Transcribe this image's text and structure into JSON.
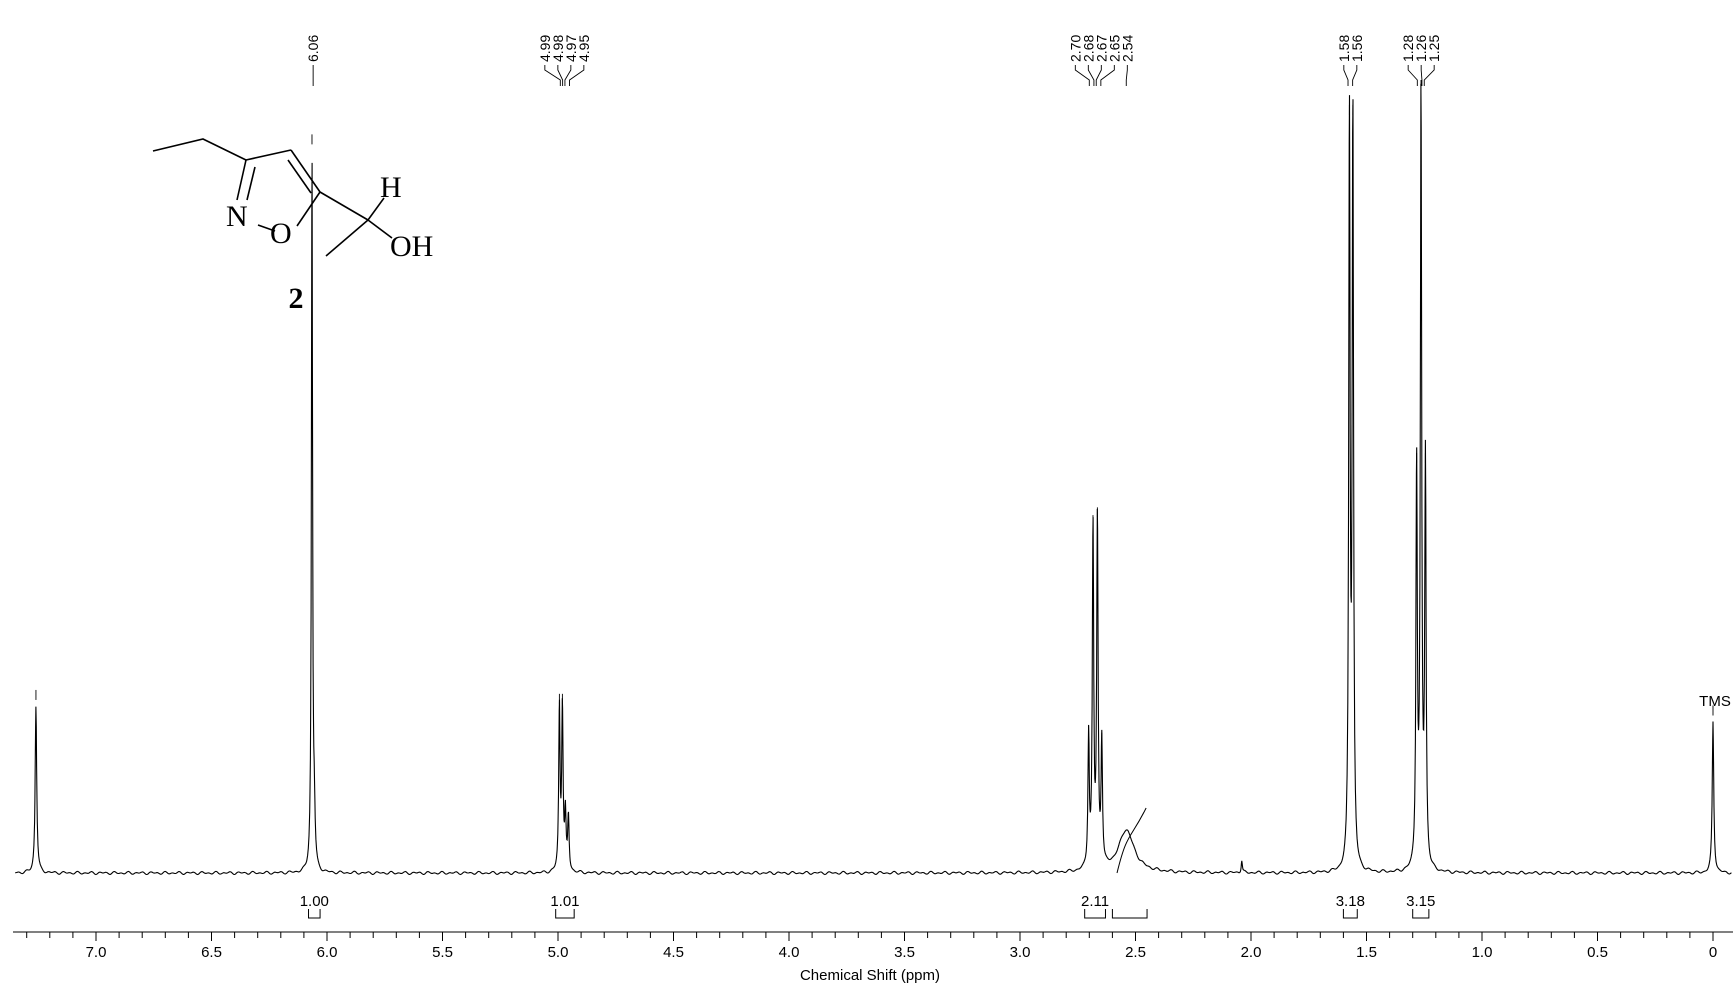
{
  "chart_data": {
    "type": "line",
    "title": "",
    "xlabel": "Chemical Shift (ppm)",
    "ylabel": "",
    "xlim": [
      7.35,
      -0.08
    ],
    "x_reversed": true,
    "grid": false,
    "tick_labels": [
      "7.0",
      "6.5",
      "6.0",
      "5.5",
      "5.0",
      "4.5",
      "4.0",
      "3.5",
      "3.0",
      "2.5",
      "2.0",
      "1.5",
      "1.0",
      "0.5",
      "0"
    ],
    "tick_values": [
      7.0,
      6.5,
      6.0,
      5.5,
      5.0,
      4.5,
      4.0,
      3.5,
      3.0,
      2.5,
      2.0,
      1.5,
      1.0,
      0.5,
      0.0
    ],
    "peak_label_groups": [
      {
        "labels": [
          "6.06"
        ],
        "shifts": [
          6.06
        ]
      },
      {
        "labels": [
          "4.99",
          "4.98",
          "4.97",
          "4.95"
        ],
        "shifts": [
          4.99,
          4.98,
          4.97,
          4.95
        ]
      },
      {
        "labels": [
          "2.70",
          "2.68",
          "2.67",
          "2.65",
          "2.54"
        ],
        "shifts": [
          2.7,
          2.68,
          2.67,
          2.65,
          2.54
        ]
      },
      {
        "labels": [
          "1.58",
          "1.56"
        ],
        "shifts": [
          1.58,
          1.56
        ]
      },
      {
        "labels": [
          "1.28",
          "1.26",
          "1.25"
        ],
        "shifts": [
          1.28,
          1.26,
          1.25
        ]
      }
    ],
    "integrals": [
      {
        "label": "1.00",
        "from": 6.08,
        "to": 6.03
      },
      {
        "label": "1.01",
        "from": 5.01,
        "to": 4.93
      },
      {
        "label": "2.11",
        "from": 2.72,
        "to": 2.63
      },
      {
        "label": "",
        "from": 2.6,
        "to": 2.45
      },
      {
        "label": "3.18",
        "from": 1.6,
        "to": 1.54
      },
      {
        "label": "3.15",
        "from": 1.3,
        "to": 1.23
      }
    ],
    "reference_label": "TMS",
    "series": [
      {
        "peaks": [
          {
            "shift": 7.26,
            "height": 0.215,
            "width": 0.004
          },
          {
            "shift": 6.065,
            "height": 0.93,
            "width": 0.003
          },
          {
            "shift": 6.055,
            "height": 0.06,
            "width": 0.004
          },
          {
            "shift": 4.994,
            "height": 0.21,
            "width": 0.0035
          },
          {
            "shift": 4.981,
            "height": 0.21,
            "width": 0.0035
          },
          {
            "shift": 4.968,
            "height": 0.07,
            "width": 0.0035
          },
          {
            "shift": 4.955,
            "height": 0.07,
            "width": 0.0035
          },
          {
            "shift": 2.703,
            "height": 0.17,
            "width": 0.0035
          },
          {
            "shift": 2.684,
            "height": 0.44,
            "width": 0.0035
          },
          {
            "shift": 2.665,
            "height": 0.45,
            "width": 0.0035
          },
          {
            "shift": 2.646,
            "height": 0.16,
            "width": 0.0035
          },
          {
            "shift": 2.54,
            "height": 0.055,
            "width": 0.04
          },
          {
            "shift": 2.04,
            "height": 0.016,
            "width": 0.003
          },
          {
            "shift": 1.574,
            "height": 0.968,
            "width": 0.0035
          },
          {
            "shift": 1.559,
            "height": 0.968,
            "width": 0.0035
          },
          {
            "shift": 1.283,
            "height": 0.52,
            "width": 0.0035
          },
          {
            "shift": 1.264,
            "height": 1.0,
            "width": 0.0035
          },
          {
            "shift": 1.245,
            "height": 0.52,
            "width": 0.0035
          },
          {
            "shift": 0.0,
            "height": 0.195,
            "width": 0.004
          }
        ]
      }
    ]
  },
  "structure": {
    "compound_number": "2",
    "atom_labels": {
      "n": "N",
      "o": "O",
      "h": "H",
      "oh": "OH"
    }
  }
}
